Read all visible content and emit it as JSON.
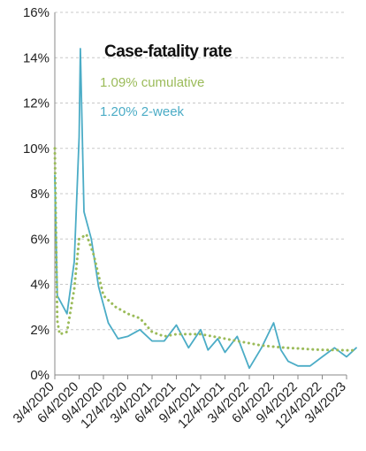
{
  "chart_data": {
    "type": "line",
    "title": "Case-fatality rate",
    "xlabel": "",
    "ylabel": "",
    "ylim": [
      0,
      16
    ],
    "grid": "horizontal-dashed",
    "legend_placement": "top-center (inline text labels)",
    "y_ticks": [
      "0%",
      "2%",
      "4%",
      "6%",
      "8%",
      "10%",
      "12%",
      "14%",
      "16%"
    ],
    "x_ticks": [
      "3/4/2020",
      "6/4/2020",
      "9/4/2020",
      "12/4/2020",
      "3/4/2021",
      "6/4/2021",
      "9/4/2021",
      "12/4/2021",
      "3/4/2022",
      "6/4/2022",
      "9/4/2022",
      "12/4/2022",
      "3/4/2023"
    ],
    "colors": {
      "two_week": "#4bacc6",
      "cumulative": "#9bbb59",
      "grid": "#c8c8c8"
    },
    "series": [
      {
        "name": "1.20% 2-week",
        "style": "solid",
        "x": [
          0.0,
          0.1,
          0.5,
          0.8,
          1.0,
          1.05,
          1.2,
          1.5,
          1.8,
          2.2,
          2.6,
          3.0,
          3.5,
          4.0,
          4.5,
          5.0,
          5.5,
          6.0,
          6.3,
          6.7,
          7.0,
          7.5,
          8.0,
          8.5,
          9.0,
          9.3,
          9.6,
          10.0,
          10.5,
          11.0,
          11.5,
          12.0,
          12.4
        ],
        "values": [
          8.8,
          3.5,
          2.7,
          5.0,
          10.5,
          14.4,
          7.2,
          6.0,
          3.9,
          2.3,
          1.6,
          1.7,
          2.0,
          1.5,
          1.5,
          2.2,
          1.2,
          2.0,
          1.1,
          1.6,
          1.0,
          1.7,
          0.3,
          1.2,
          2.3,
          1.1,
          0.6,
          0.4,
          0.4,
          0.8,
          1.2,
          0.8,
          1.2
        ]
      },
      {
        "name": "1.09% cumulative",
        "style": "dotted",
        "x": [
          0.0,
          0.1,
          0.2,
          0.5,
          0.8,
          1.0,
          1.3,
          1.6,
          2.0,
          2.5,
          3.0,
          3.5,
          4.0,
          4.5,
          5.0,
          5.5,
          6.0,
          6.5,
          7.0,
          7.5,
          8.0,
          8.5,
          9.0,
          9.5,
          10.0,
          10.5,
          11.0,
          11.5,
          12.0,
          12.4
        ],
        "values": [
          10.0,
          2.4,
          1.8,
          1.9,
          3.8,
          6.0,
          6.2,
          5.3,
          3.5,
          3.0,
          2.7,
          2.5,
          1.9,
          1.7,
          1.8,
          1.8,
          1.8,
          1.7,
          1.6,
          1.5,
          1.4,
          1.3,
          1.25,
          1.2,
          1.17,
          1.13,
          1.11,
          1.1,
          1.09,
          1.09
        ]
      }
    ]
  }
}
